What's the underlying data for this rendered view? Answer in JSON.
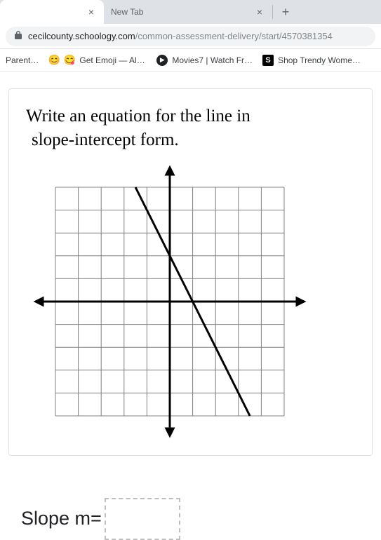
{
  "tabs": {
    "active_close": "×",
    "inactive_label": "New Tab",
    "inactive_close": "×",
    "newtab_glyph": "+"
  },
  "address": {
    "domain": "cecilcounty.schoology.com",
    "path": "/common-assessment-delivery/start/4570381354"
  },
  "bookmarks": {
    "b0": {
      "label": "Parent…"
    },
    "b1": {
      "label": "Get Emoji — All…",
      "emoji1": "😊",
      "emoji2": "😋"
    },
    "b2": {
      "label": "Movies7 | Watch Fr…",
      "glyph": "▶"
    },
    "b3": {
      "label": "Shop Trendy Wome…",
      "glyph": "S"
    }
  },
  "question": {
    "line1": "Write an equation for the line in",
    "line2": "slope-intercept form."
  },
  "graph": {
    "type": "line-on-grid",
    "grid": {
      "xmin": -5,
      "xmax": 5,
      "ymin": -5,
      "ymax": 5,
      "step": 1
    },
    "grid_color": "#808080",
    "axis_color": "#000000",
    "line_color": "#000000",
    "line": {
      "slope": -2,
      "intercept": 2,
      "p1": [
        -1.5,
        5
      ],
      "p2": [
        3.5,
        -5
      ]
    },
    "axis_width": 3,
    "line_width": 3,
    "grid_width": 1
  },
  "answer": {
    "label": "Slope m="
  },
  "colors": {
    "chrome_bg": "#dee1e6",
    "tab_active_bg": "#ffffff",
    "address_bg": "#f1f3f4",
    "url_path": "#80868b",
    "text": "#202124"
  }
}
